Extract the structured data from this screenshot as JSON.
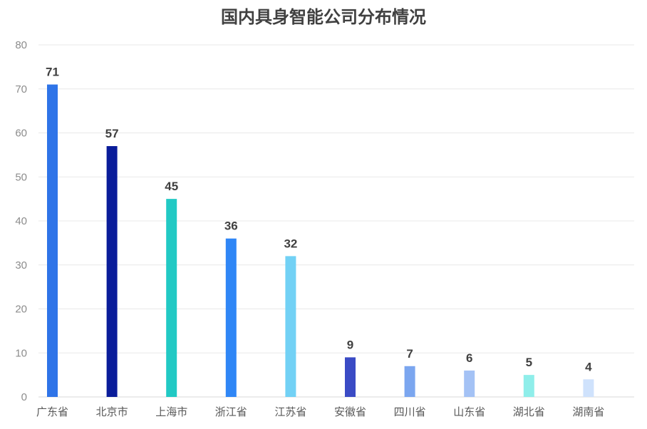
{
  "chart_data": {
    "type": "bar",
    "title": "国内具身智能公司分布情况",
    "categories": [
      "广东省",
      "北京市",
      "上海市",
      "浙江省",
      "江苏省",
      "安徽省",
      "四川省",
      "山东省",
      "湖北省",
      "湖南省"
    ],
    "values": [
      71,
      57,
      45,
      36,
      32,
      9,
      7,
      6,
      5,
      4
    ],
    "colors": [
      "#2f74e8",
      "#0a1c9a",
      "#21c9c4",
      "#2f86f6",
      "#72d1f5",
      "#3a4bc5",
      "#7ba6ef",
      "#a4c2f5",
      "#8feeea",
      "#cfe2fc"
    ],
    "ylim": [
      0,
      80
    ],
    "yticks": [
      0,
      10,
      20,
      30,
      40,
      50,
      60,
      70,
      80
    ],
    "grid": true,
    "data_labels": true,
    "legend": "none"
  }
}
